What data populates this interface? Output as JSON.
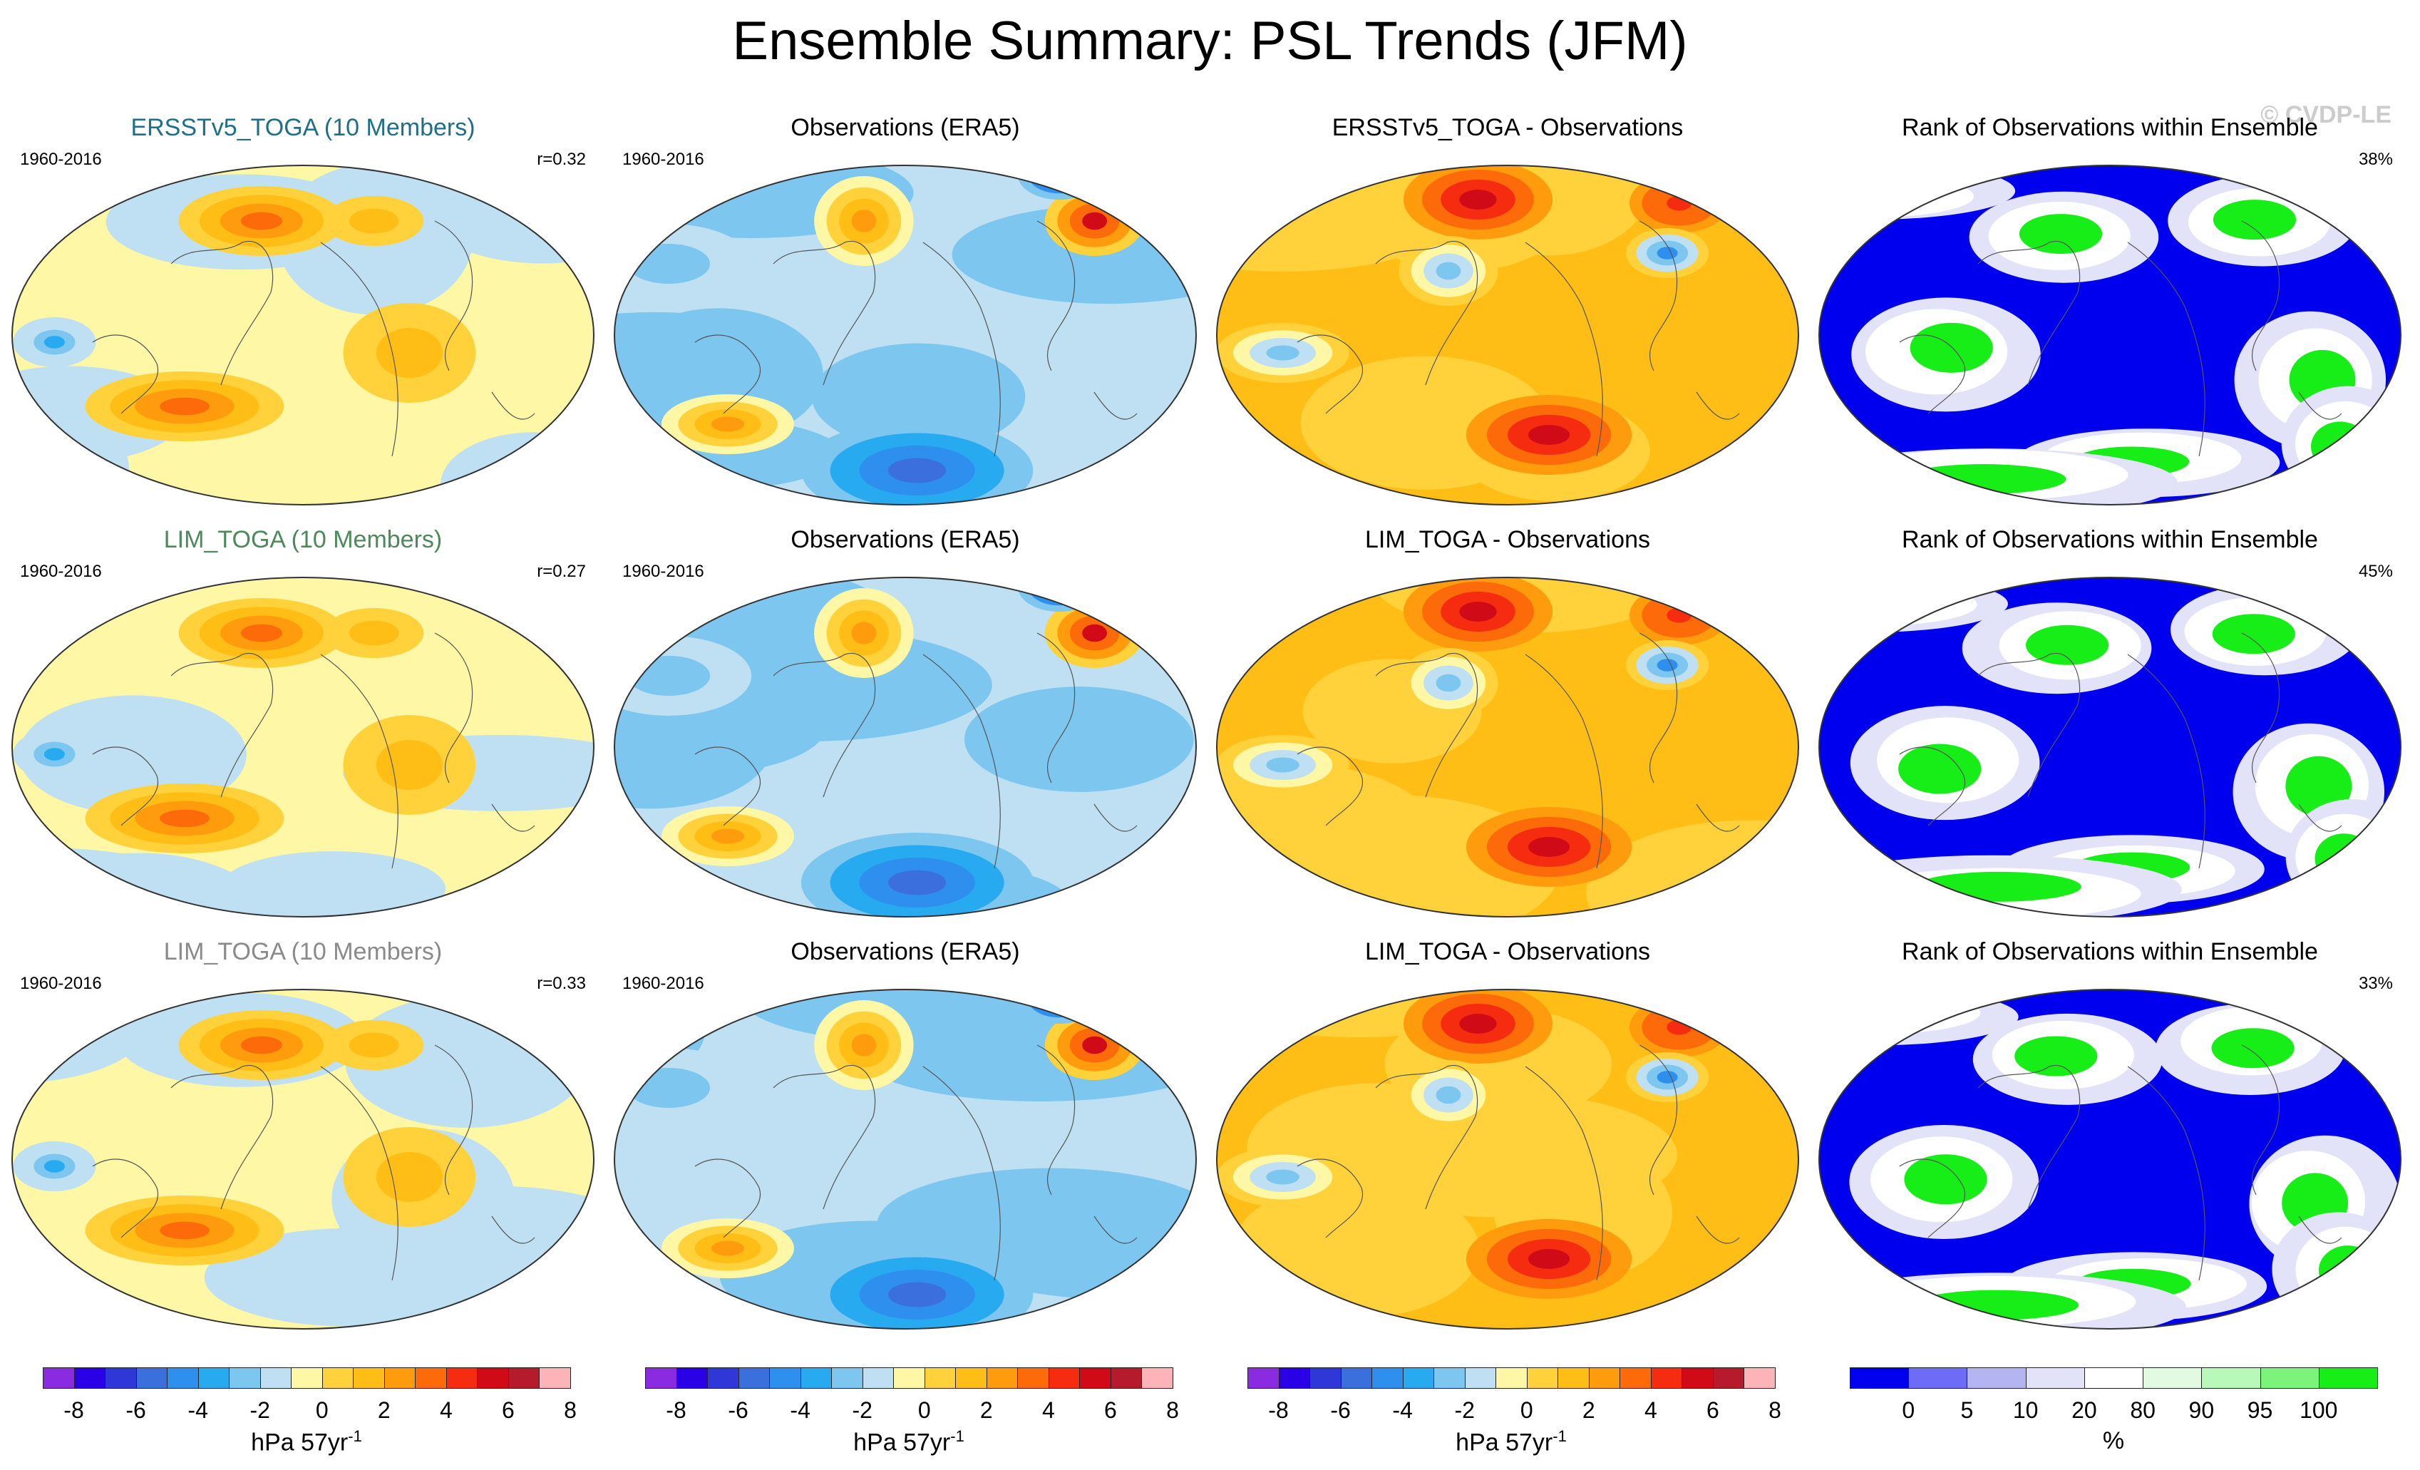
{
  "title": "Ensemble Summary: PSL Trends (JFM)",
  "watermark": "© CVDP-LE",
  "colors": {
    "trend_scale": [
      "#8a2be2",
      "#2a00e6",
      "#2f37d6",
      "#3b6fde",
      "#2f8fef",
      "#28aaf0",
      "#7cc6f0",
      "#bfe0f2",
      "#fef7a6",
      "#ffd23c",
      "#ffbe16",
      "#ff9c0e",
      "#fc6a0a",
      "#f52c10",
      "#d10a18",
      "#b51b2a",
      "#fdb4b8"
    ],
    "rank_scale": [
      "#0000ee",
      "#6c6cf6",
      "#b4b4f0",
      "#e2e2f8",
      "#ffffff",
      "#e2fae2",
      "#b8f8b8",
      "#7cf47c",
      "#17ee17"
    ]
  },
  "chart_data": [
    {
      "type": "heatmap",
      "title": "ERSSTv5_TOGA (10 Members)",
      "title_color": "#1f6f8b",
      "period": "1960-2016",
      "stat": "r=0.32",
      "scale": "trend"
    },
    {
      "type": "heatmap",
      "title": "Observations (ERA5)",
      "title_color": "#000000",
      "period": "1960-2016",
      "stat": "",
      "scale": "trend"
    },
    {
      "type": "heatmap",
      "title": "ERSSTv5_TOGA - Observations",
      "title_color": "#000000",
      "period": "",
      "stat": "",
      "scale": "trend"
    },
    {
      "type": "heatmap",
      "title": "Rank of Observations within Ensemble",
      "title_color": "#000000",
      "period": "",
      "stat": "38%",
      "scale": "rank"
    },
    {
      "type": "heatmap",
      "title": "LIM_TOGA (10 Members)",
      "title_color": "#4c8a5a",
      "period": "1960-2016",
      "stat": "r=0.27",
      "scale": "trend"
    },
    {
      "type": "heatmap",
      "title": "Observations (ERA5)",
      "title_color": "#000000",
      "period": "1960-2016",
      "stat": "",
      "scale": "trend"
    },
    {
      "type": "heatmap",
      "title": "LIM_TOGA - Observations",
      "title_color": "#000000",
      "period": "",
      "stat": "",
      "scale": "trend"
    },
    {
      "type": "heatmap",
      "title": "Rank of Observations within Ensemble",
      "title_color": "#000000",
      "period": "",
      "stat": "45%",
      "scale": "rank"
    },
    {
      "type": "heatmap",
      "title": "LIM_TOGA (10 Members)",
      "title_color": "#8a8a8a",
      "period": "1960-2016",
      "stat": "r=0.33",
      "scale": "trend"
    },
    {
      "type": "heatmap",
      "title": "Observations (ERA5)",
      "title_color": "#000000",
      "period": "1960-2016",
      "stat": "",
      "scale": "trend"
    },
    {
      "type": "heatmap",
      "title": "LIM_TOGA - Observations",
      "title_color": "#000000",
      "period": "",
      "stat": "",
      "scale": "trend"
    },
    {
      "type": "heatmap",
      "title": "Rank of Observations within Ensemble",
      "title_color": "#000000",
      "period": "",
      "stat": "33%",
      "scale": "rank"
    }
  ],
  "colorbars": [
    {
      "scale": "trend",
      "ticks": [
        "-8",
        "-6",
        "-4",
        "-2",
        "0",
        "2",
        "4",
        "6",
        "8"
      ],
      "units": "hPa 57yr",
      "units_sup": "-1"
    },
    {
      "scale": "trend",
      "ticks": [
        "-8",
        "-6",
        "-4",
        "-2",
        "0",
        "2",
        "4",
        "6",
        "8"
      ],
      "units": "hPa 57yr",
      "units_sup": "-1"
    },
    {
      "scale": "trend",
      "ticks": [
        "-8",
        "-6",
        "-4",
        "-2",
        "0",
        "2",
        "4",
        "6",
        "8"
      ],
      "units": "hPa 57yr",
      "units_sup": "-1"
    },
    {
      "scale": "rank",
      "ticks": [
        "0",
        "5",
        "10",
        "20",
        "80",
        "90",
        "95",
        "100"
      ],
      "units": "%",
      "units_sup": ""
    }
  ]
}
